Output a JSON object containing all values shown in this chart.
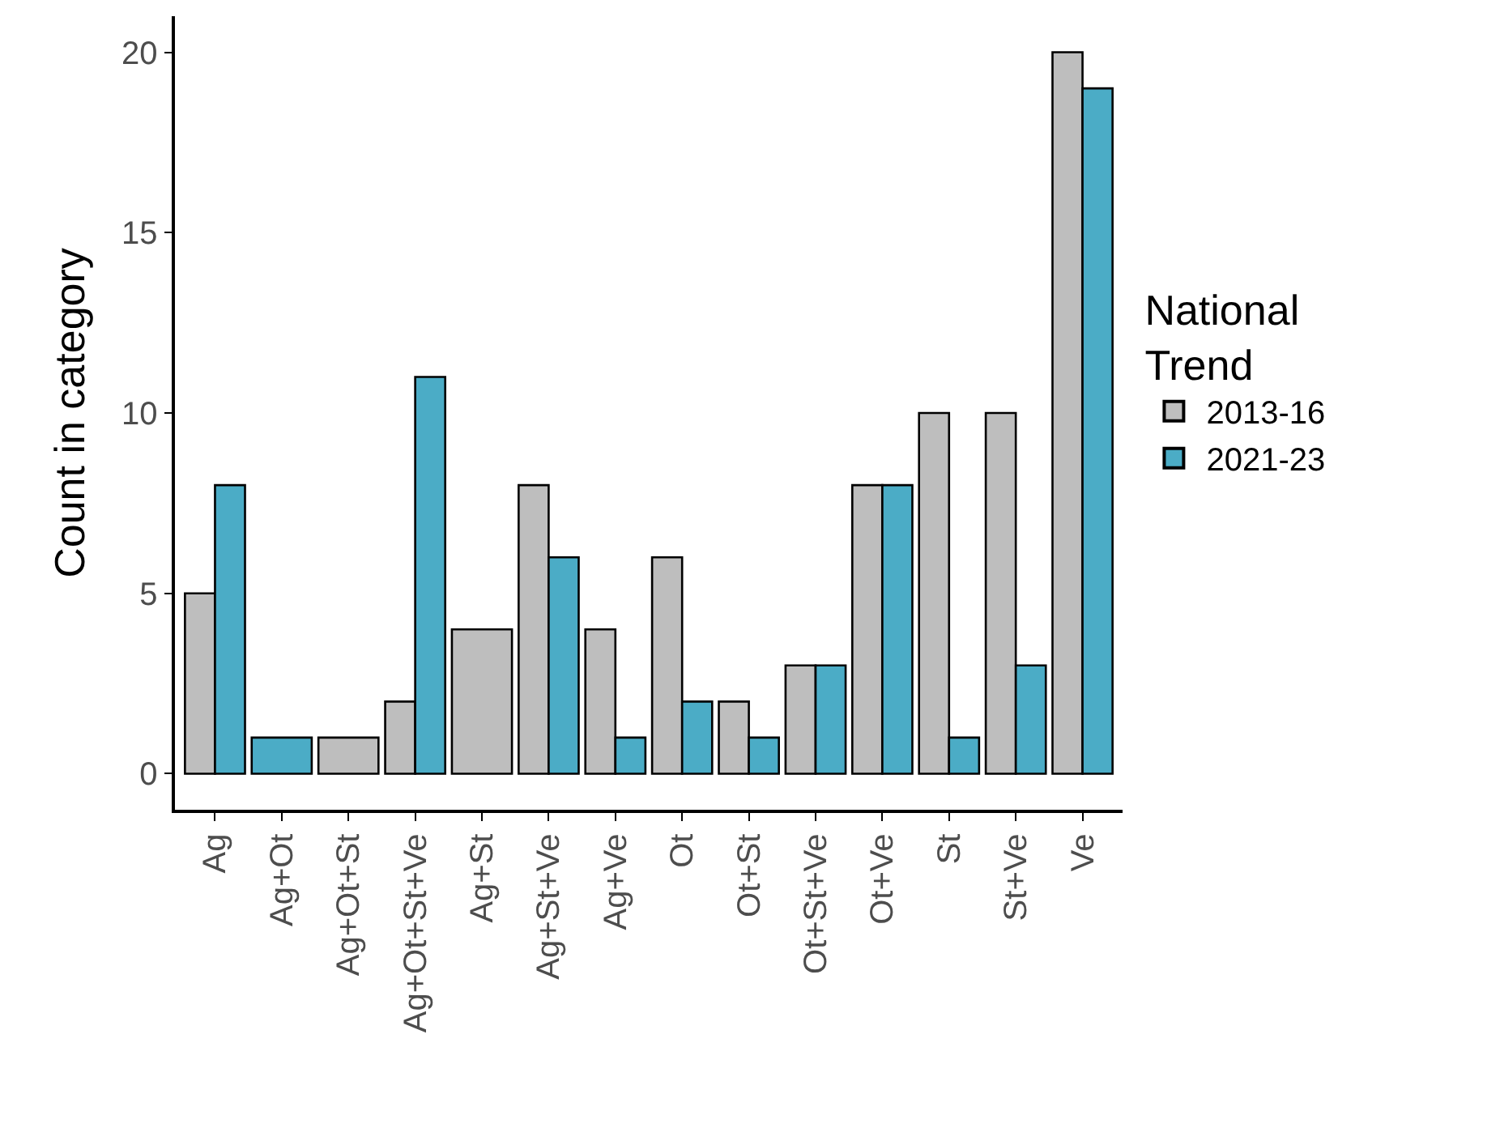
{
  "chart_data": {
    "type": "bar",
    "ylabel": "Count in category",
    "legend_title": "National\nTrend",
    "categories": [
      "Ag",
      "Ag+Ot",
      "Ag+Ot+St",
      "Ag+Ot+St+Ve",
      "Ag+St",
      "Ag+St+Ve",
      "Ag+Ve",
      "Ot",
      "Ot+St",
      "Ot+St+Ve",
      "Ot+Ve",
      "St",
      "St+Ve",
      "Ve"
    ],
    "series": [
      {
        "name": "2013-16",
        "color": "#bebebe",
        "values": [
          5,
          null,
          1,
          2,
          4,
          8,
          4,
          6,
          2,
          3,
          8,
          10,
          10,
          20
        ]
      },
      {
        "name": "2021-23",
        "color": "#4bacc6",
        "values": [
          8,
          1,
          null,
          11,
          null,
          6,
          1,
          2,
          1,
          3,
          8,
          1,
          3,
          19
        ]
      }
    ],
    "ylim": [
      -1,
      21
    ],
    "yticks": [
      0,
      5,
      10,
      15,
      20
    ],
    "legend": "right"
  }
}
